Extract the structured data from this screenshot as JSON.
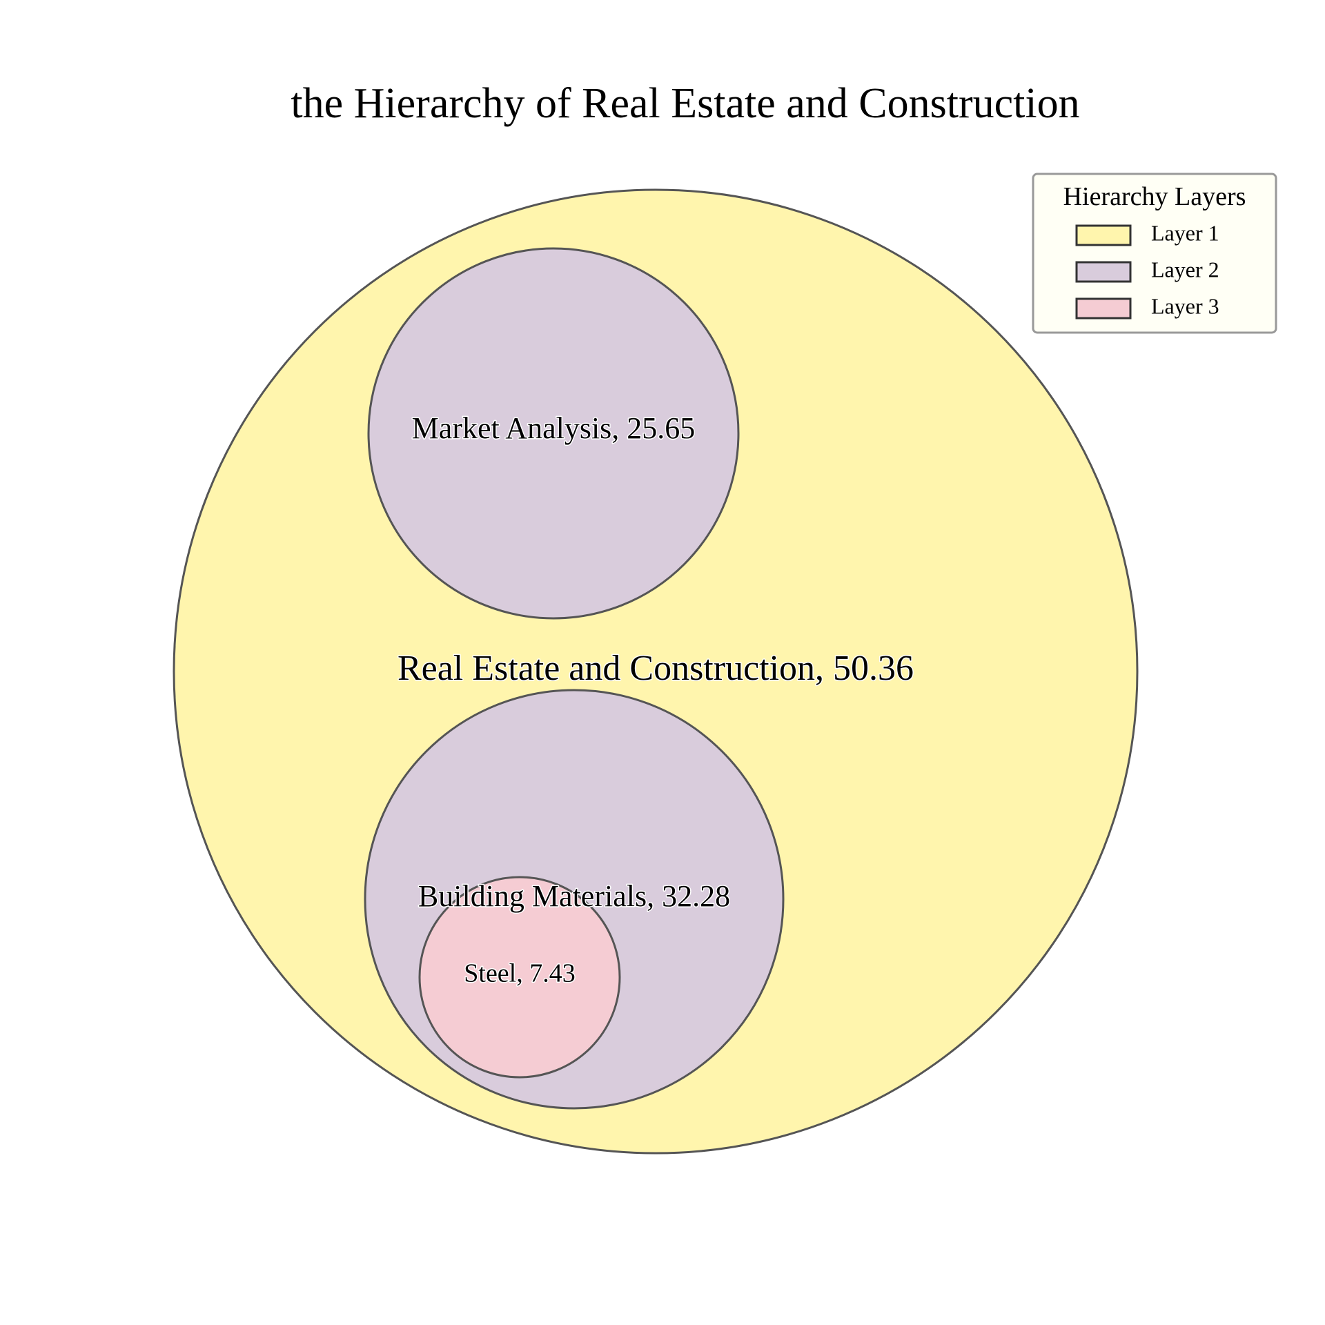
{
  "chart_data": {
    "type": "circle_packing",
    "title": "the Hierarchy of Real Estate and Construction",
    "nodes": [
      {
        "name": "Real Estate and Construction",
        "value": 50.36,
        "layer": 1,
        "parent": null,
        "label": "Real Estate and Construction, 50.36"
      },
      {
        "name": "Market Analysis",
        "value": 25.65,
        "layer": 2,
        "parent": "Real Estate and Construction",
        "label": "Market Analysis, 25.65"
      },
      {
        "name": "Building Materials",
        "value": 32.28,
        "layer": 2,
        "parent": "Real Estate and Construction",
        "label": "Building Materials, 32.28"
      },
      {
        "name": "Steel",
        "value": 7.43,
        "layer": 3,
        "parent": "Building Materials",
        "label": "Steel, 7.43"
      }
    ],
    "legend": {
      "title": "Hierarchy Layers",
      "placement": "top-right",
      "entries": [
        {
          "label": "Layer 1",
          "color": "#fff5ad"
        },
        {
          "label": "Layer 2",
          "color": "#d9ccdc"
        },
        {
          "label": "Layer 3",
          "color": "#f5ccd3"
        }
      ]
    },
    "colors": {
      "layer1": "#fff5ad",
      "layer2": "#d9ccdc",
      "layer3": "#f5ccd3",
      "edge": "#555555",
      "legend_background": "#fffff5",
      "legend_border": "#999999"
    }
  }
}
